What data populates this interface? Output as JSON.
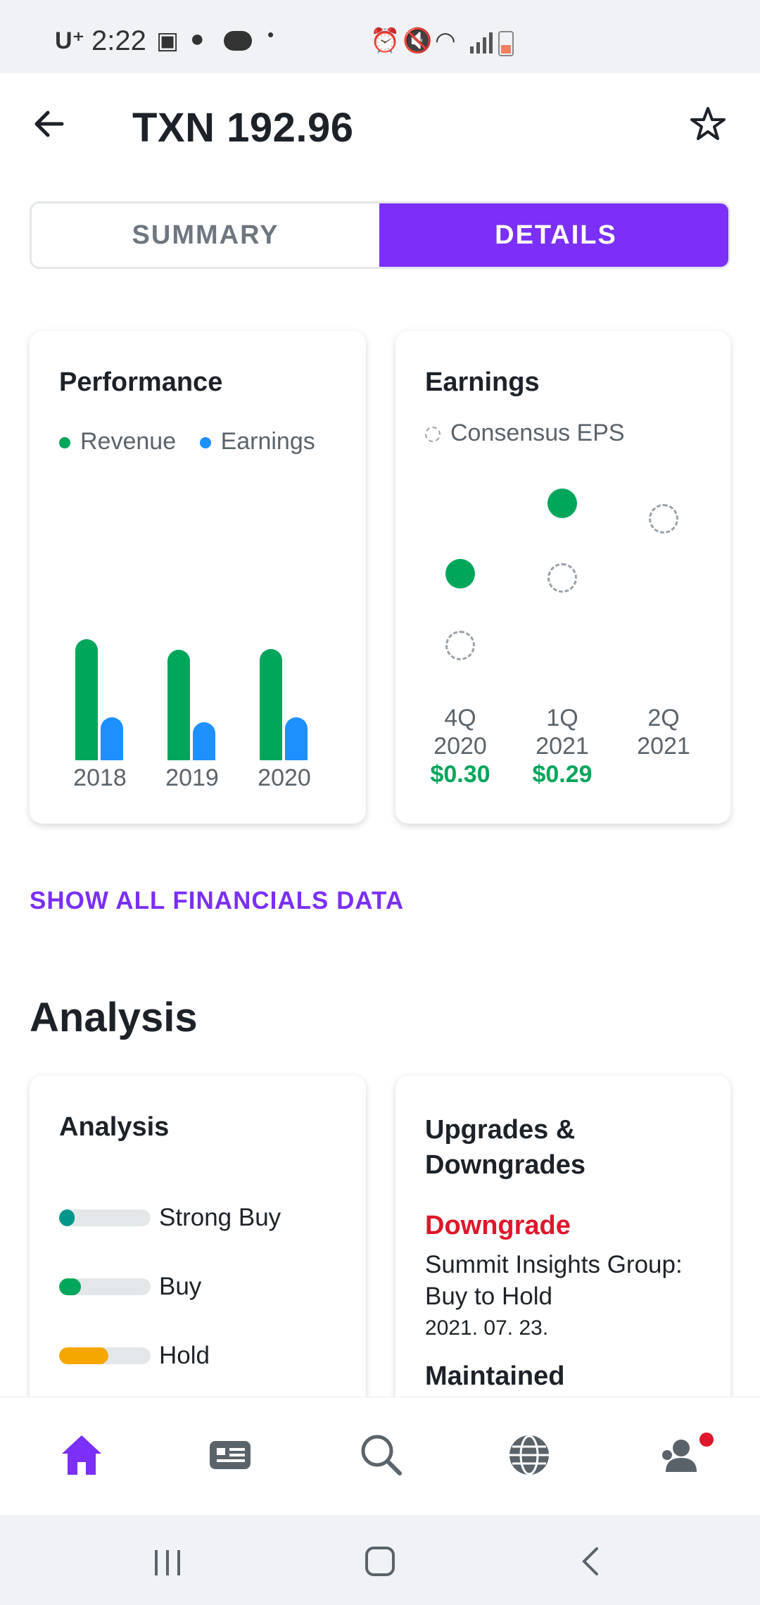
{
  "status_bar": {
    "carrier": "U⁺",
    "time": "2:22"
  },
  "header": {
    "title": "TXN 192.96"
  },
  "tabs": {
    "summary": "SUMMARY",
    "details": "DETAILS",
    "active": "DETAILS"
  },
  "performance": {
    "title": "Performance",
    "legend": [
      "Revenue",
      "Earnings"
    ],
    "colors": {
      "revenue": "#00a65a",
      "earnings": "#1e90ff"
    },
    "chart_data": {
      "type": "bar",
      "categories": [
        "2018",
        "2019",
        "2020"
      ],
      "series": [
        {
          "name": "Revenue",
          "values": [
            15.8,
            14.4,
            14.5
          ]
        },
        {
          "name": "Earnings",
          "values": [
            5.6,
            5.0,
            5.6
          ]
        }
      ]
    }
  },
  "earnings": {
    "title": "Earnings",
    "legend": "Consensus EPS",
    "quarters": [
      {
        "q": "4Q",
        "y": "2020",
        "actual": "$0.30"
      },
      {
        "q": "1Q",
        "y": "2021",
        "actual": "$0.29"
      },
      {
        "q": "2Q",
        "y": "2021",
        "actual": ""
      }
    ]
  },
  "links": {
    "show_all": "SHOW ALL FINANCIALS DATA"
  },
  "analysis_section": {
    "heading": "Analysis"
  },
  "analysis_card": {
    "title": "Analysis",
    "ratings": [
      {
        "label": "Strong Buy",
        "fraction": 0.17,
        "color": "#00968a"
      },
      {
        "label": "Buy",
        "fraction": 0.24,
        "color": "#00a65a"
      },
      {
        "label": "Hold",
        "fraction": 0.54,
        "color": "#f5a700"
      }
    ]
  },
  "upgrades": {
    "title_line1": "Upgrades &",
    "title_line2": "Downgrades",
    "items": [
      {
        "action": "Downgrade",
        "firm": "Summit Insights Group:",
        "change": "Buy to Hold",
        "date": "2021. 07. 23."
      },
      {
        "action": "Maintained"
      }
    ]
  },
  "nav": [
    "home-icon",
    "news-icon",
    "search-icon",
    "globe-icon",
    "profile-icon"
  ]
}
